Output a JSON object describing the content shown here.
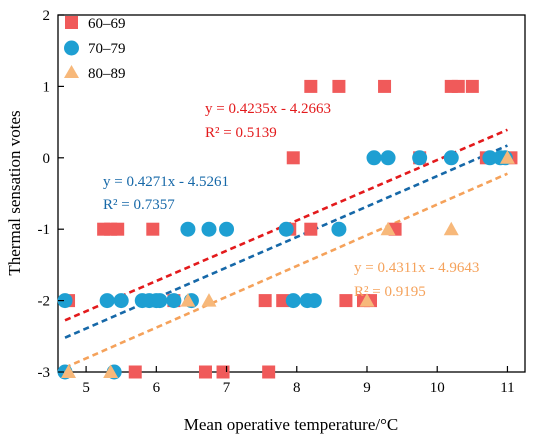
{
  "chart_data": {
    "type": "scatter",
    "xlabel": "Mean operative temperature/°C",
    "ylabel": "Thermal sensation votes",
    "xlim": [
      4.6,
      11.25
    ],
    "ylim": [
      -3,
      2
    ],
    "xticks": [
      5,
      6,
      7,
      8,
      9,
      10,
      11
    ],
    "yticks": [
      -3,
      -2,
      -1,
      0,
      1,
      2
    ],
    "grid": false,
    "legend_position": "top-left",
    "series": [
      {
        "name": "60–69",
        "marker": "square",
        "color": "#f05a5a",
        "points": [
          [
            4.75,
            -2
          ],
          [
            5.25,
            -1
          ],
          [
            5.35,
            -1
          ],
          [
            5.45,
            -1
          ],
          [
            5.7,
            -3
          ],
          [
            5.95,
            -1
          ],
          [
            6.0,
            -2
          ],
          [
            6.25,
            -2
          ],
          [
            6.7,
            -3
          ],
          [
            6.95,
            -3
          ],
          [
            7.55,
            -2
          ],
          [
            7.6,
            -3
          ],
          [
            7.8,
            -2
          ],
          [
            7.9,
            -1
          ],
          [
            7.95,
            0
          ],
          [
            8.2,
            -1
          ],
          [
            8.2,
            1
          ],
          [
            8.6,
            1
          ],
          [
            8.7,
            -2
          ],
          [
            8.95,
            -2
          ],
          [
            9.05,
            -2
          ],
          [
            9.25,
            1
          ],
          [
            9.4,
            -1
          ],
          [
            9.75,
            0
          ],
          [
            10.2,
            1
          ],
          [
            10.3,
            1
          ],
          [
            10.5,
            1
          ],
          [
            10.7,
            0
          ],
          [
            11.05,
            0
          ]
        ]
      },
      {
        "name": "70–79",
        "marker": "circle",
        "color": "#1e9fd2",
        "points": [
          [
            4.7,
            -2
          ],
          [
            4.7,
            -3
          ],
          [
            5.3,
            -2
          ],
          [
            5.4,
            -3
          ],
          [
            5.5,
            -2
          ],
          [
            5.8,
            -2
          ],
          [
            5.9,
            -2
          ],
          [
            6.0,
            -2
          ],
          [
            6.05,
            -2
          ],
          [
            6.25,
            -2
          ],
          [
            6.45,
            -1
          ],
          [
            6.5,
            -2
          ],
          [
            6.75,
            -1
          ],
          [
            7.0,
            -1
          ],
          [
            7.85,
            -1
          ],
          [
            7.95,
            -2
          ],
          [
            8.15,
            -2
          ],
          [
            8.25,
            -2
          ],
          [
            8.6,
            -1
          ],
          [
            9.1,
            0
          ],
          [
            9.3,
            0
          ],
          [
            9.75,
            0
          ],
          [
            10.2,
            0
          ],
          [
            10.75,
            0
          ],
          [
            10.9,
            0
          ],
          [
            10.97,
            0
          ]
        ]
      },
      {
        "name": "80–89",
        "marker": "triangle",
        "color": "#f7b87a",
        "points": [
          [
            4.75,
            -3
          ],
          [
            5.35,
            -3
          ],
          [
            6.45,
            -2
          ],
          [
            6.75,
            -2
          ],
          [
            9.0,
            -2
          ],
          [
            9.3,
            -1
          ],
          [
            10.2,
            -1
          ],
          [
            11.0,
            0
          ]
        ]
      }
    ],
    "fit_lines": [
      {
        "series": "60–69",
        "slope": 0.4235,
        "intercept": -4.2663,
        "x_range": [
          4.7,
          11.0
        ],
        "color": "#e31a1c",
        "equation": "y = 0.4235x - 4.2663",
        "r2": "R² = 0.5139"
      },
      {
        "series": "70–79",
        "slope": 0.4271,
        "intercept": -4.5261,
        "x_range": [
          4.7,
          11.0
        ],
        "color": "#1668a8",
        "equation": "y = 0.4271x - 4.5261",
        "r2": "R² = 0.7357"
      },
      {
        "series": "80–89",
        "slope": 0.4311,
        "intercept": -4.9643,
        "x_range": [
          4.7,
          11.0
        ],
        "color": "#f5a25b",
        "equation": "y = 0.4311x - 4.9643",
        "r2": "R² = 0.9195"
      }
    ]
  }
}
